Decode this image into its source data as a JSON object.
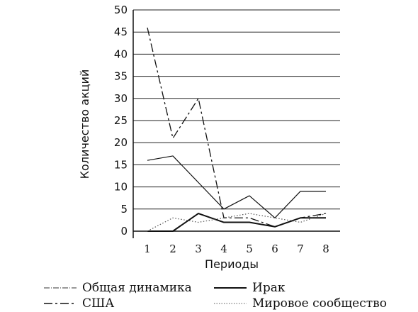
{
  "chart_data": {
    "type": "line",
    "title": "",
    "xlabel": "Периоды",
    "ylabel": "Количество акций",
    "categories": [
      "1",
      "2",
      "3",
      "4",
      "5",
      "6",
      "7",
      "8"
    ],
    "yticks": [
      "0",
      "5",
      "10",
      "15",
      "20",
      "25",
      "30",
      "35",
      "40",
      "45",
      "50"
    ],
    "ylim": [
      0,
      50
    ],
    "grid": "horizontal",
    "legend_position": "bottom",
    "series": [
      {
        "name": "Общая динамика",
        "values": [
          16,
          17,
          11,
          5,
          8,
          3,
          9,
          9
        ],
        "color": "#111111",
        "dash": "solid"
      },
      {
        "name": "США",
        "values": [
          46,
          21,
          30,
          3,
          3,
          1,
          3,
          4
        ],
        "color": "#111111",
        "dash": "dashdot"
      },
      {
        "name": "Ирак",
        "values": [
          0,
          0,
          4,
          2,
          2,
          1,
          3,
          3
        ],
        "color": "#111111",
        "dash": "solid-thick"
      },
      {
        "name": "Мировое сообщество",
        "values": [
          0,
          3,
          2,
          3,
          4,
          3,
          2,
          4
        ],
        "color": "#555555",
        "dash": "dotted"
      }
    ]
  },
  "legend": {
    "items": [
      {
        "label": "Общая динамика",
        "style": "thin"
      },
      {
        "label": "Ирак",
        "style": "solid-thick"
      },
      {
        "label": "США",
        "style": "dashdot"
      },
      {
        "label": "Мировое сообщество",
        "style": "dotted"
      }
    ]
  }
}
